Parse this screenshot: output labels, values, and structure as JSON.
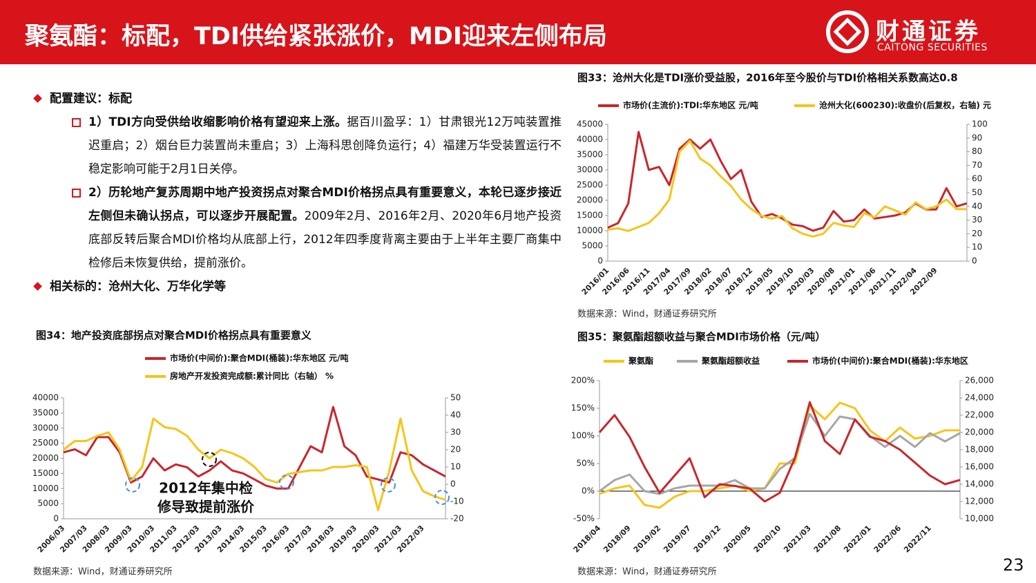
{
  "header": {
    "title": "聚氨酯：标配，TDI供给紧张涨价，MDI迎来左侧布局",
    "logo": "财通证券",
    "logo_en": "CAITONG SECURITIES"
  },
  "bullets": [
    {
      "level": 1,
      "text": "配置建议：标配"
    },
    {
      "level": 2,
      "bold": "1）TDI方向受供给收缩影响价格有望迎来上涨。",
      "text": "据百川盈孚：1）甘肃银光12万吨装置推迟重启；2）烟台巨力装置尚未重启；3）上海科思创降负运行；4）福建万华受装置运行不稳定影响可能于2月1日关停。"
    },
    {
      "level": 2,
      "bold": "2）历轮地产复苏周期中地产投资拐点对聚合MDI价格拐点具有重要意义，本轮已逐步接近左侧但未确认拐点，可以逐步开展配置。",
      "text": "2009年2月、2016年2月、2020年6月地产投资底部反转后聚合MDI价格均从底部上行，2012年四季度背离主要由于上半年主要厂商集中检修后未恢复供给，提前涨价。"
    },
    {
      "level": 1,
      "text": "相关标的：沧州大化、万华化学等"
    }
  ],
  "chart_data": [
    {
      "type": "line",
      "title": "图33：沧州大化是TDI涨价受益股，2016年至今股价与TDI价格相关系数高达0.8",
      "source": "数据来源：Wind，财通证券研究所",
      "categories": [
        "2016/01",
        null,
        "2016/06",
        null,
        "2016/11",
        null,
        "2017/04",
        null,
        "2017/09",
        null,
        "2018/02",
        null,
        "2018/07",
        null,
        "2018/12",
        null,
        "2019/05",
        null,
        "2019/10",
        null,
        "2020/03",
        null,
        "2020/08",
        null,
        "2021/01",
        null,
        "2021/06",
        null,
        "2021/11",
        null,
        "2022/04",
        null,
        "2022/09",
        null,
        null,
        null
      ],
      "series": [
        {
          "name": "市场价(主流价):TDI:华东地区 元/吨",
          "color": "#c9252c",
          "axis": "y",
          "values": [
            11000,
            12500,
            19000,
            42500,
            30000,
            31000,
            25000,
            37000,
            40000,
            37000,
            40000,
            33000,
            27000,
            30000,
            19500,
            14500,
            15500,
            14000,
            12000,
            11500,
            10000,
            11000,
            16500,
            13000,
            13500,
            17000,
            14000,
            14500,
            15000,
            16000,
            19000,
            17000,
            17000,
            24000,
            18000,
            19000
          ]
        },
        {
          "name": "沧州大化(600230):收盘价(后复权，右轴) 元",
          "color": "#f5c518",
          "axis": "y2",
          "values": [
            23,
            24,
            22,
            25,
            28,
            35,
            45,
            80,
            88,
            75,
            70,
            62,
            55,
            45,
            38,
            33,
            31,
            33,
            24,
            20,
            18,
            20,
            28,
            26,
            25,
            35,
            32,
            40,
            37,
            34,
            43,
            38,
            40,
            45,
            38,
            38
          ]
        }
      ],
      "ylim": [
        0,
        45000
      ],
      "yticks": [
        0,
        5000,
        10000,
        15000,
        20000,
        25000,
        30000,
        35000,
        40000,
        45000
      ],
      "y2lim": [
        0,
        100
      ],
      "y2ticks": [
        0,
        10,
        20,
        30,
        40,
        50,
        60,
        70,
        80,
        90,
        100
      ],
      "grid": false
    },
    {
      "type": "line",
      "title": "图34：地产投资底部拐点对聚合MDI价格拐点具有重要意义",
      "source": "数据来源：Wind，财通证券研究所",
      "annotation": [
        "2012年集中检",
        "修导致提前涨价"
      ],
      "categories": [
        "2006/03",
        null,
        "2007/03",
        null,
        "2008/03",
        null,
        "2009/03",
        null,
        "2010/03",
        null,
        "2011/03",
        null,
        "2012/03",
        null,
        "2013/03",
        null,
        "2014/03",
        null,
        "2015/03",
        null,
        "2016/03",
        null,
        "2017/03",
        null,
        "2018/03",
        null,
        "2019/03",
        null,
        "2020/03",
        null,
        "2021/03",
        null,
        "2022/03",
        null,
        null
      ],
      "series": [
        {
          "name": "市场价(中间价):聚合MDI(桶装):华东地区 元/吨",
          "color": "#c9252c",
          "axis": "y",
          "values": [
            22000,
            23000,
            21000,
            27000,
            27000,
            22000,
            12000,
            14000,
            20000,
            16000,
            18000,
            17000,
            14000,
            16000,
            19000,
            16000,
            15000,
            13000,
            11000,
            10000,
            10000,
            17000,
            24000,
            22000,
            37000,
            24000,
            21000,
            14000,
            13000,
            12000,
            22000,
            21000,
            18000,
            16000,
            14000
          ]
        },
        {
          "name": "房地产开发投资完成额:累计同比（右轴） %",
          "color": "#f5c518",
          "axis": "y2",
          "values": [
            20,
            25,
            25,
            28,
            30,
            20,
            2,
            10,
            38,
            33,
            32,
            28,
            20,
            15,
            20,
            18,
            15,
            10,
            3,
            1,
            6,
            7,
            8,
            8,
            10,
            10,
            11,
            10,
            -15,
            8,
            38,
            8,
            -4,
            -7,
            -9
          ]
        }
      ],
      "ylim": [
        0,
        40000
      ],
      "yticks": [
        0,
        5000,
        10000,
        15000,
        20000,
        25000,
        30000,
        35000,
        40000
      ],
      "y2lim": [
        -20,
        50
      ],
      "y2ticks": [
        -20,
        -10,
        0,
        10,
        20,
        30,
        40,
        50
      ],
      "grid": false
    },
    {
      "type": "line",
      "title": "图35：聚氨酯超额收益与聚合MDI市场价格（元/吨）",
      "source": "数据来源：Wind，财通证券研究所",
      "categories": [
        "2018/04",
        null,
        "2018/09",
        null,
        "2019/02",
        null,
        "2019/07",
        null,
        "2019/12",
        null,
        "2020/05",
        null,
        "2020/10",
        null,
        "2021/03",
        null,
        "2021/08",
        null,
        "2022/01",
        null,
        "2022/06",
        null,
        "2022/11",
        null,
        null
      ],
      "series": [
        {
          "name": "聚氨酯",
          "color": "#f5c518",
          "axis": "y",
          "values": [
            -5,
            5,
            10,
            -25,
            -30,
            -10,
            0,
            0,
            5,
            10,
            0,
            5,
            50,
            50,
            155,
            130,
            160,
            150,
            110,
            90,
            115,
            95,
            100,
            110,
            110
          ]
        },
        {
          "name": "聚氨酯超额收益",
          "color": "#a6a6a6",
          "axis": "y",
          "values": [
            0,
            20,
            30,
            0,
            -5,
            5,
            10,
            10,
            10,
            20,
            5,
            5,
            40,
            60,
            140,
            100,
            135,
            130,
            100,
            80,
            100,
            80,
            105,
            90,
            105
          ]
        },
        {
          "name": "市场价(中间价):聚合MDI(桶装):华东地区",
          "color": "#c9252c",
          "axis": "y2",
          "values": [
            20000,
            22000,
            19500,
            16000,
            13000,
            15000,
            17000,
            12500,
            14000,
            13800,
            13500,
            12000,
            13000,
            17000,
            23500,
            19000,
            17500,
            21500,
            19500,
            19000,
            18000,
            16500,
            15000,
            14000,
            14500
          ]
        }
      ],
      "ylim": [
        -50,
        200
      ],
      "yticks": [
        {
          "value": -50,
          "label": "-50%"
        },
        {
          "value": 0,
          "label": "0%"
        },
        {
          "value": 50,
          "label": "50%"
        },
        {
          "value": 100,
          "label": "100%"
        },
        {
          "value": 150,
          "label": "150%"
        },
        {
          "value": 200,
          "label": "200%"
        }
      ],
      "y2lim": [
        10000,
        26000
      ],
      "y2ticks": [
        {
          "value": 10000,
          "label": "10,000"
        },
        {
          "value": 12000,
          "label": "12,000"
        },
        {
          "value": 14000,
          "label": "14,000"
        },
        {
          "value": 16000,
          "label": "16,000"
        },
        {
          "value": 18000,
          "label": "18,000"
        },
        {
          "value": 20000,
          "label": "20,000"
        },
        {
          "value": 22000,
          "label": "22,000"
        },
        {
          "value": 24000,
          "label": "24,000"
        },
        {
          "value": 26000,
          "label": "26,000"
        }
      ],
      "grid": false
    }
  ],
  "page_number": "23"
}
